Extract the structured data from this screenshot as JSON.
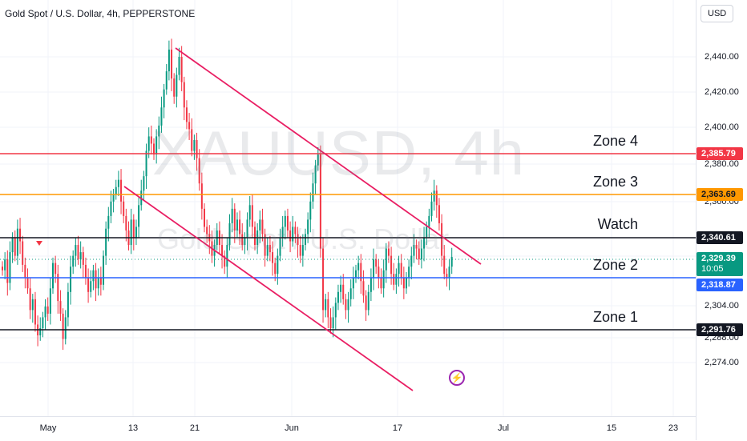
{
  "header": {
    "title": "Gold Spot / U.S. Dollar, 4h, PEPPERSTONE",
    "currency": "USD"
  },
  "watermark": {
    "symbol": "XAUUSD, 4h",
    "name": "Gold Spot / U.S. Dollar"
  },
  "zones": [
    {
      "label": "Zone 4",
      "price": "2,385.79",
      "color": "#f23645"
    },
    {
      "label": "Zone 3",
      "price": "2,363.69",
      "color": "#ff9800"
    },
    {
      "label": "Watch",
      "price": "2,340.61",
      "color": "#131722"
    },
    {
      "label": "Zone 2",
      "price": "2,318.87",
      "color": "#2962ff"
    },
    {
      "label": "Zone 1",
      "price": "2,291.76",
      "color": "#131722"
    }
  ],
  "current": {
    "price": "2,329.39",
    "countdown": "10:05",
    "color": "#089981"
  },
  "y_ticks": [
    "2,440.00",
    "2,420.00",
    "2,400.00",
    "2,380.00",
    "2,360.00",
    "2,304.00",
    "2,288.00",
    "2,274.00"
  ],
  "x_ticks": [
    "May",
    "13",
    "21",
    "Jun",
    "17",
    "Jul",
    "15",
    "23"
  ],
  "colors": {
    "up": "#089981",
    "down": "#f23645",
    "channel": "#e91e63"
  },
  "chart_data": {
    "type": "candlestick",
    "symbol": "XAUUSD",
    "timeframe": "4h",
    "ylim": [
      2262,
      2456
    ],
    "closes": [
      2322,
      2328,
      2315,
      2332,
      2340,
      2330,
      2345,
      2338,
      2325,
      2318,
      2312,
      2300,
      2306,
      2292,
      2286,
      2290,
      2296,
      2302,
      2298,
      2312,
      2326,
      2320,
      2305,
      2298,
      2284,
      2296,
      2310,
      2324,
      2330,
      2336,
      2328,
      2332,
      2325,
      2318,
      2310,
      2316,
      2322,
      2312,
      2318,
      2314,
      2330,
      2345,
      2352,
      2360,
      2364,
      2368,
      2372,
      2360,
      2352,
      2344,
      2336,
      2350,
      2340,
      2346,
      2358,
      2366,
      2374,
      2388,
      2396,
      2392,
      2386,
      2396,
      2402,
      2412,
      2422,
      2432,
      2444,
      2428,
      2418,
      2430,
      2440,
      2426,
      2412,
      2404,
      2400,
      2388,
      2394,
      2384,
      2370,
      2356,
      2346,
      2342,
      2338,
      2330,
      2336,
      2344,
      2336,
      2330,
      2324,
      2336,
      2348,
      2356,
      2344,
      2350,
      2342,
      2336,
      2340,
      2350,
      2358,
      2346,
      2336,
      2344,
      2350,
      2342,
      2330,
      2336,
      2332,
      2326,
      2320,
      2330,
      2340,
      2346,
      2352,
      2344,
      2338,
      2346,
      2342,
      2336,
      2330,
      2336,
      2342,
      2350,
      2360,
      2370,
      2380,
      2386,
      2334,
      2300,
      2306,
      2296,
      2290,
      2296,
      2304,
      2310,
      2314,
      2306,
      2300,
      2306,
      2312,
      2318,
      2322,
      2326,
      2316,
      2308,
      2300,
      2310,
      2318,
      2328,
      2324,
      2318,
      2312,
      2322,
      2334,
      2330,
      2320,
      2314,
      2320,
      2326,
      2318,
      2312,
      2318,
      2324,
      2330,
      2336,
      2334,
      2328,
      2334,
      2340,
      2346,
      2352,
      2360,
      2366,
      2358,
      2348,
      2330,
      2320,
      2318,
      2324,
      2329.39
    ]
  }
}
